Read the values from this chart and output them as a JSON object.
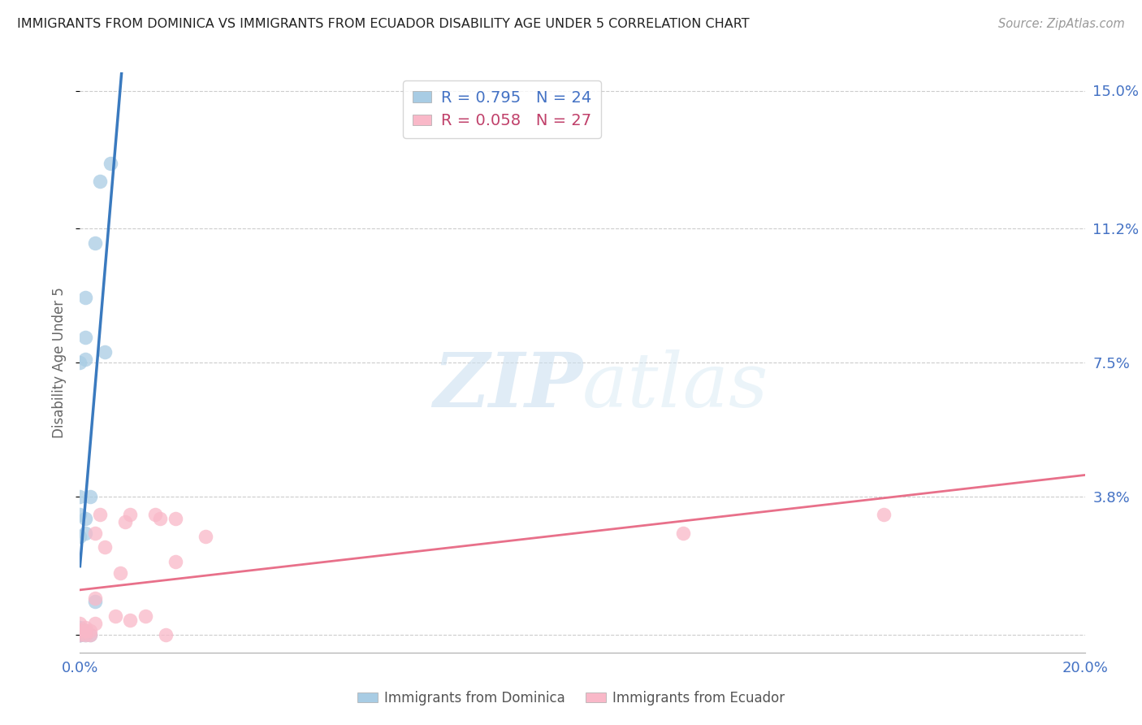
{
  "title": "IMMIGRANTS FROM DOMINICA VS IMMIGRANTS FROM ECUADOR DISABILITY AGE UNDER 5 CORRELATION CHART",
  "source": "Source: ZipAtlas.com",
  "ylabel": "Disability Age Under 5",
  "xlim": [
    0.0,
    0.2
  ],
  "ylim": [
    -0.005,
    0.155
  ],
  "yticks": [
    0.0,
    0.038,
    0.075,
    0.112,
    0.15
  ],
  "ytick_labels": [
    "",
    "3.8%",
    "7.5%",
    "11.2%",
    "15.0%"
  ],
  "xticks": [
    0.0,
    0.05,
    0.1,
    0.15,
    0.2
  ],
  "xtick_labels": [
    "0.0%",
    "",
    "",
    "",
    "20.0%"
  ],
  "dominica_R": 0.795,
  "dominica_N": 24,
  "ecuador_R": 0.058,
  "ecuador_N": 27,
  "dominica_color": "#a8cce4",
  "ecuador_color": "#f9b8c8",
  "dominica_line_color": "#3a7abf",
  "ecuador_line_color": "#e8708a",
  "background_color": "#ffffff",
  "watermark_zip": "ZIP",
  "watermark_atlas": "atlas",
  "dominica_x": [
    0.0,
    0.0,
    0.0,
    0.0,
    0.0,
    0.0,
    0.0,
    0.0,
    0.0,
    0.0,
    0.001,
    0.001,
    0.001,
    0.001,
    0.001,
    0.001,
    0.001,
    0.002,
    0.002,
    0.003,
    0.003,
    0.004,
    0.005,
    0.006
  ],
  "dominica_y": [
    0.0,
    0.0,
    0.0,
    0.001,
    0.001,
    0.002,
    0.027,
    0.033,
    0.038,
    0.075,
    0.0,
    0.001,
    0.028,
    0.032,
    0.076,
    0.082,
    0.093,
    0.0,
    0.038,
    0.009,
    0.108,
    0.125,
    0.078,
    0.13
  ],
  "ecuador_x": [
    0.0,
    0.0,
    0.0,
    0.001,
    0.001,
    0.001,
    0.002,
    0.002,
    0.003,
    0.003,
    0.003,
    0.004,
    0.005,
    0.007,
    0.008,
    0.009,
    0.01,
    0.01,
    0.013,
    0.015,
    0.016,
    0.017,
    0.019,
    0.019,
    0.025,
    0.12,
    0.16
  ],
  "ecuador_y": [
    0.0,
    0.001,
    0.003,
    0.0,
    0.001,
    0.002,
    0.0,
    0.001,
    0.003,
    0.01,
    0.028,
    0.033,
    0.024,
    0.005,
    0.017,
    0.031,
    0.004,
    0.033,
    0.005,
    0.033,
    0.032,
    0.0,
    0.02,
    0.032,
    0.027,
    0.028,
    0.033
  ]
}
